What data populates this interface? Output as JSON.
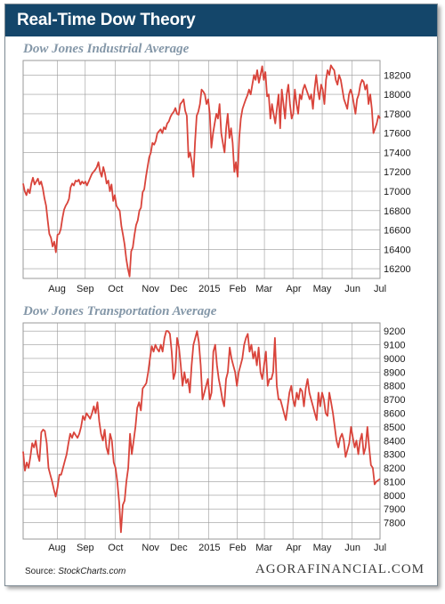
{
  "header": {
    "title": "Real-Time Dow Theory"
  },
  "footer": {
    "source_label": "Source:",
    "source_name": "StockCharts.com",
    "brand": "AGORAFINANCIAL.COM"
  },
  "colors": {
    "header_bg": "#14466a",
    "line": "#d9443b",
    "grid": "#9a9a9a",
    "title": "#8497a8"
  },
  "chart_data": [
    {
      "type": "line",
      "title": "Dow Jones Industrial Average",
      "x_tick_labels": [
        "Aug",
        "Sep",
        "Oct",
        "Nov",
        "Dec",
        "2015",
        "Feb",
        "Mar",
        "Apr",
        "May",
        "Jun",
        "Jul"
      ],
      "y_tick_labels": [
        "16200",
        "16400",
        "16600",
        "16800",
        "17000",
        "17200",
        "17400",
        "17600",
        "17800",
        "18000",
        "18200"
      ],
      "ylim": [
        16100,
        18350
      ],
      "grid": true,
      "series": [
        {
          "values": [
            17080,
            17000,
            16960,
            17020,
            16980,
            17080,
            17140,
            17070,
            17100,
            17130,
            17070,
            17100,
            17030,
            16930,
            16850,
            16700,
            16560,
            16520,
            16430,
            16480,
            16370,
            16550,
            16560,
            16610,
            16720,
            16810,
            16850,
            16880,
            16920,
            17040,
            17080,
            17060,
            17110,
            17100,
            17120,
            17070,
            17100,
            17080,
            17100,
            17060,
            17100,
            17140,
            17180,
            17200,
            17220,
            17250,
            17300,
            17200,
            17150,
            17250,
            17180,
            17080,
            17110,
            17000,
            17070,
            16900,
            16960,
            16850,
            16820,
            16800,
            16640,
            16550,
            16450,
            16300,
            16200,
            16120,
            16380,
            16420,
            16550,
            16650,
            16700,
            16800,
            16830,
            16990,
            17020,
            17150,
            17250,
            17350,
            17400,
            17500,
            17480,
            17520,
            17600,
            17620,
            17640,
            17600,
            17660,
            17640,
            17700,
            17720,
            17770,
            17800,
            17820,
            17860,
            17800,
            17790,
            17900,
            17920,
            17950,
            17830,
            17780,
            17350,
            17400,
            17300,
            17150,
            17500,
            17780,
            17820,
            17900,
            18050,
            18030,
            18000,
            17900,
            17950,
            17800,
            17450,
            17600,
            17700,
            17800,
            17750,
            17900,
            17600,
            17500,
            17400,
            17650,
            17800,
            17550,
            17650,
            17500,
            17200,
            17300,
            17150,
            17550,
            17750,
            17850,
            17900,
            17950,
            17990,
            18050,
            18000,
            18100,
            18200,
            18150,
            18250,
            18120,
            18200,
            18290,
            18150,
            18230,
            17980,
            18000,
            17750,
            17900,
            17800,
            17700,
            17850,
            18000,
            17650,
            18050,
            17900,
            17750,
            18000,
            18100,
            17900,
            17750,
            17800,
            18050,
            17900,
            17800,
            18000,
            17950,
            18050,
            18100,
            18050,
            18000,
            17950,
            18000,
            17850,
            18050,
            18200,
            18050,
            17950,
            18100,
            18050,
            17900,
            18150,
            18250,
            18200,
            18300,
            18270,
            18250,
            18150,
            18100,
            18200,
            18150,
            18050,
            17950,
            17900,
            17850,
            18000,
            18050,
            18000,
            17900,
            17800,
            17950,
            18000,
            18100,
            18150,
            18130,
            18050,
            18100,
            17900,
            18000,
            17850,
            17600,
            17650,
            17700,
            17780,
            17750
          ]
        }
      ]
    },
    {
      "type": "line",
      "title": "Dow Jones Transportation Average",
      "x_tick_labels": [
        "Aug",
        "Sep",
        "Oct",
        "Nov",
        "Dec",
        "2015",
        "Feb",
        "Mar",
        "Apr",
        "May",
        "Jun",
        "Jul"
      ],
      "y_tick_labels": [
        "7800",
        "7900",
        "8000",
        "8100",
        "8200",
        "8300",
        "8400",
        "8500",
        "8600",
        "8700",
        "8800",
        "8900",
        "9000",
        "9100",
        "9200"
      ],
      "ylim": [
        7680,
        9260
      ],
      "grid": true,
      "series": [
        {
          "values": [
            8320,
            8180,
            8240,
            8200,
            8280,
            8380,
            8350,
            8400,
            8300,
            8250,
            8460,
            8480,
            8470,
            8380,
            8200,
            8150,
            8100,
            8040,
            7990,
            8060,
            8150,
            8150,
            8200,
            8250,
            8300,
            8380,
            8450,
            8420,
            8460,
            8440,
            8420,
            8450,
            8500,
            8580,
            8550,
            8600,
            8580,
            8560,
            8600,
            8650,
            8600,
            8680,
            8540,
            8450,
            8400,
            8480,
            8350,
            8300,
            8450,
            8400,
            8240,
            8200,
            8100,
            7950,
            7730,
            7930,
            7960,
            8100,
            8200,
            8450,
            8300,
            8400,
            8500,
            8640,
            8680,
            8620,
            8780,
            8800,
            8820,
            8900,
            9000,
            9090,
            9050,
            9100,
            9070,
            9050,
            9100,
            9050,
            9150,
            9200,
            9200,
            9180,
            9050,
            8850,
            8900,
            9150,
            9080,
            8950,
            8800,
            8900,
            8820,
            8850,
            8750,
            8950,
            9100,
            9150,
            9200,
            9120,
            8950,
            8700,
            8750,
            8800,
            8850,
            8700,
            8750,
            9050,
            9100,
            8950,
            8850,
            8780,
            8700,
            8650,
            8850,
            8900,
            9080,
            9000,
            8950,
            8900,
            8800,
            8900,
            8950,
            9000,
            9100,
            9150,
            9180,
            9050,
            9100,
            9000,
            9050,
            8950,
            9080,
            8900,
            8850,
            8950,
            9050,
            8800,
            8850,
            8850,
            8900,
            9150,
            8800,
            8700,
            8700,
            8650,
            8600,
            8550,
            8650,
            8750,
            8800,
            8700,
            8650,
            8750,
            8700,
            8780,
            8760,
            8650,
            8780,
            8850,
            8750,
            8700,
            8650,
            8600,
            8550,
            8750,
            8650,
            8750,
            8700,
            8600,
            8580,
            8750,
            8680,
            8600,
            8500,
            8400,
            8350,
            8420,
            8450,
            8400,
            8280,
            8330,
            8380,
            8500,
            8420,
            8350,
            8400,
            8300,
            8400,
            8450,
            8300,
            8350,
            8500,
            8350,
            8220,
            8200,
            8080,
            8100,
            8110,
            8120
          ]
        }
      ]
    }
  ]
}
